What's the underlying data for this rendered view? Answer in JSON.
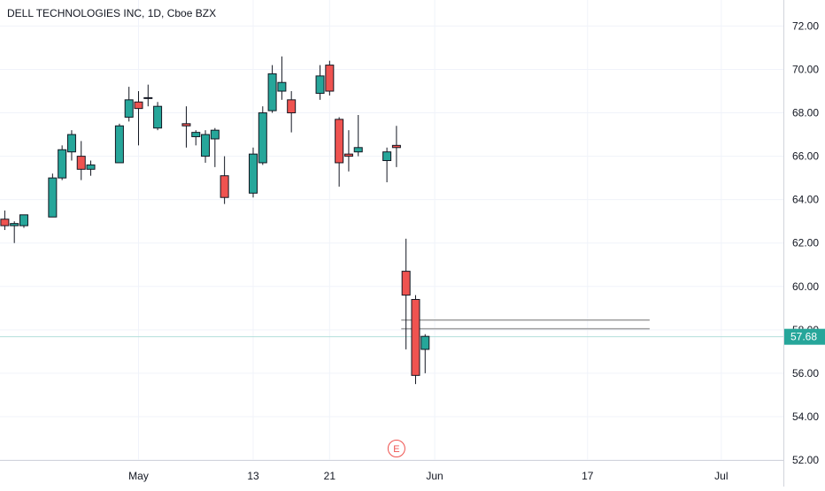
{
  "header": {
    "title": "DELL TECHNOLOGIES INC, 1D, Cboe BZX"
  },
  "colors": {
    "up": "#26a69a",
    "down": "#ef5350",
    "wick": "#131722",
    "grid": "#f0f3fa",
    "axis_text": "#131722",
    "last_price_line": "#b2dfdb",
    "last_price_badge": "#26a69a",
    "drawn_line": "#9e9e9e",
    "event_marker": "#ef5350"
  },
  "chart_data": {
    "type": "candlestick",
    "title": "DELL TECHNOLOGIES INC, 1D, Cboe BZX",
    "xlabel": "",
    "ylabel": "",
    "ylim": [
      52,
      73.2
    ],
    "grid": true,
    "y_ticks": [
      "52.00",
      "54.00",
      "56.00",
      "58.00",
      "60.00",
      "62.00",
      "64.00",
      "66.00",
      "68.00",
      "70.00",
      "72.00"
    ],
    "x_ticks": [
      {
        "label": "May",
        "day": 30
      },
      {
        "label": "13",
        "day": 42
      },
      {
        "label": "21",
        "day": 50
      },
      {
        "label": "Jun",
        "day": 61
      },
      {
        "label": "17",
        "day": 77
      },
      {
        "label": "Jul",
        "day": 91
      }
    ],
    "x_day_range": [
      15.5,
      97.5
    ],
    "series": [
      {
        "day": 15,
        "open": 64.4,
        "high": 64.5,
        "low": 62.8,
        "close": 62.8
      },
      {
        "day": 16,
        "open": 63.1,
        "high": 63.5,
        "low": 62.6,
        "close": 62.8
      },
      {
        "day": 17,
        "open": 62.8,
        "high": 63.0,
        "low": 62.0,
        "close": 62.9
      },
      {
        "day": 18,
        "open": 62.8,
        "high": 63.3,
        "low": 62.7,
        "close": 63.3
      },
      {
        "day": 21,
        "open": 63.2,
        "high": 65.2,
        "low": 63.2,
        "close": 65.0
      },
      {
        "day": 22,
        "open": 65.0,
        "high": 66.5,
        "low": 64.9,
        "close": 66.3
      },
      {
        "day": 23,
        "open": 66.2,
        "high": 67.2,
        "low": 65.8,
        "close": 67.0
      },
      {
        "day": 24,
        "open": 66.0,
        "high": 66.7,
        "low": 64.9,
        "close": 65.4
      },
      {
        "day": 25,
        "open": 65.4,
        "high": 65.8,
        "low": 65.1,
        "close": 65.6
      },
      {
        "day": 28,
        "open": 65.7,
        "high": 67.5,
        "low": 65.7,
        "close": 67.4
      },
      {
        "day": 29,
        "open": 67.8,
        "high": 69.2,
        "low": 67.6,
        "close": 68.6
      },
      {
        "day": 30,
        "open": 68.5,
        "high": 69.0,
        "low": 66.5,
        "close": 68.2
      },
      {
        "day": 31,
        "open": 68.7,
        "high": 69.3,
        "low": 68.3,
        "close": 68.7
      },
      {
        "day": 32,
        "open": 67.3,
        "high": 68.5,
        "low": 67.2,
        "close": 68.3
      },
      {
        "day": 35,
        "open": 67.5,
        "high": 68.3,
        "low": 66.4,
        "close": 67.4
      },
      {
        "day": 36,
        "open": 66.9,
        "high": 67.2,
        "low": 66.5,
        "close": 67.1
      },
      {
        "day": 37,
        "open": 66.0,
        "high": 67.2,
        "low": 65.7,
        "close": 67.0
      },
      {
        "day": 38,
        "open": 66.8,
        "high": 67.3,
        "low": 65.5,
        "close": 67.2
      },
      {
        "day": 39,
        "open": 65.1,
        "high": 66.0,
        "low": 63.8,
        "close": 64.1
      },
      {
        "day": 42,
        "open": 64.3,
        "high": 66.4,
        "low": 64.1,
        "close": 66.1
      },
      {
        "day": 43,
        "open": 65.7,
        "high": 68.3,
        "low": 65.6,
        "close": 68.0
      },
      {
        "day": 44,
        "open": 68.1,
        "high": 70.2,
        "low": 68.0,
        "close": 69.8
      },
      {
        "day": 45,
        "open": 69.0,
        "high": 70.6,
        "low": 68.6,
        "close": 69.4
      },
      {
        "day": 46,
        "open": 68.6,
        "high": 69.0,
        "low": 67.1,
        "close": 68.0
      },
      {
        "day": 49,
        "open": 68.9,
        "high": 70.2,
        "low": 68.6,
        "close": 69.7
      },
      {
        "day": 50,
        "open": 70.2,
        "high": 70.4,
        "low": 68.8,
        "close": 69.0
      },
      {
        "day": 51,
        "open": 67.7,
        "high": 67.8,
        "low": 64.6,
        "close": 65.7
      },
      {
        "day": 52,
        "open": 66.1,
        "high": 67.2,
        "low": 65.3,
        "close": 66.0
      },
      {
        "day": 53,
        "open": 66.2,
        "high": 67.9,
        "low": 66.0,
        "close": 66.4
      },
      {
        "day": 56,
        "open": 65.8,
        "high": 66.4,
        "low": 64.8,
        "close": 66.2
      },
      {
        "day": 57,
        "open": 66.5,
        "high": 67.4,
        "low": 65.5,
        "close": 66.4
      },
      {
        "day": 58,
        "open": 60.7,
        "high": 62.2,
        "low": 57.1,
        "close": 59.6
      },
      {
        "day": 59,
        "open": 59.4,
        "high": 59.6,
        "low": 55.5,
        "close": 55.9
      },
      {
        "day": 60,
        "open": 57.1,
        "high": 57.8,
        "low": 56.0,
        "close": 57.7
      }
    ],
    "horizontal_lines": [
      58.45,
      58.05
    ],
    "last_price": {
      "value": 57.68,
      "label": "57.68"
    },
    "event_marker": {
      "label": "E",
      "day": 57
    }
  }
}
